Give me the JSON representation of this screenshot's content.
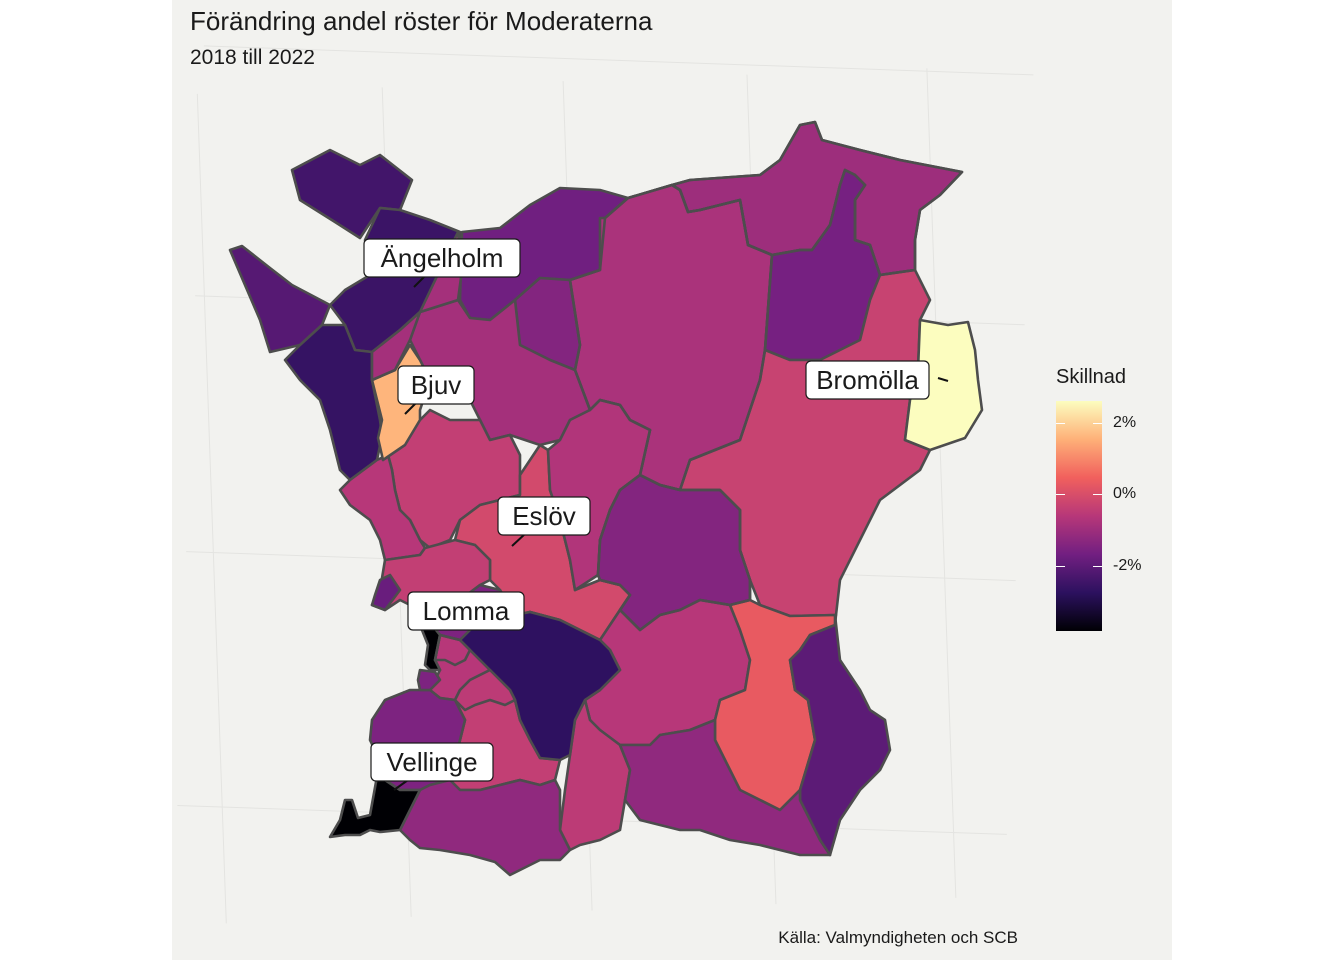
{
  "title": "Förändring andel röster för Moderaterna",
  "subtitle": "2018 till 2022",
  "caption": "Källa: Valmyndigheten och SCB",
  "legend": {
    "title": "Skillnad",
    "ticks": [
      "2%",
      "0%",
      "-2%"
    ],
    "tick_values": [
      2,
      0,
      -2
    ],
    "range": [
      -3.8,
      2.6
    ],
    "palette": [
      "#000004",
      "#2c115f",
      "#721f81",
      "#b73779",
      "#f1605d",
      "#feb078",
      "#fcfdbf"
    ]
  },
  "colors": {
    "background": "#f2f2ef",
    "border": "#4d4d4d",
    "gridline": "#e4e4e1"
  },
  "labels": [
    "Ängelholm",
    "Bjuv",
    "Bromölla",
    "Eslöv",
    "Lomma",
    "Vellinge"
  ],
  "regions": [
    {
      "value": -2.4
    },
    {
      "value": -2.5
    },
    {
      "value": -2.1
    },
    {
      "value": -1.7
    },
    {
      "value": -2.6
    },
    {
      "value": -1.4
    },
    {
      "value": -1.0
    },
    {
      "value": -0.8
    },
    {
      "value": -1.6
    },
    {
      "value": -0.9
    },
    {
      "value": -0.3
    },
    {
      "value": -0.4
    },
    {
      "value": -0.6
    },
    {
      "value": 1.6
    },
    {
      "value": -0.1
    },
    {
      "value": -0.7
    },
    {
      "value": -1.4
    },
    {
      "value": -0.4
    },
    {
      "value": -1.5
    },
    {
      "value": -0.6
    },
    {
      "value": 0.3
    },
    {
      "value": 2.6
    },
    {
      "value": 0.1
    },
    {
      "value": -0.5
    },
    {
      "value": -0.4
    },
    {
      "value": -0.6
    },
    {
      "value": -2.0
    },
    {
      "value": -1.2
    },
    {
      "value": -1.5
    },
    {
      "value": -1.2
    },
    {
      "value": -3.8
    },
    {
      "value": -0.9
    },
    {
      "value": -2.7
    },
    {
      "value": -0.7
    },
    {
      "value": -1.4
    },
    {
      "value": -3.8
    },
    {
      "value": -1.5
    },
    {
      "value": -0.5
    },
    {
      "value": -1.4
    },
    {
      "value": -1.8
    }
  ]
}
